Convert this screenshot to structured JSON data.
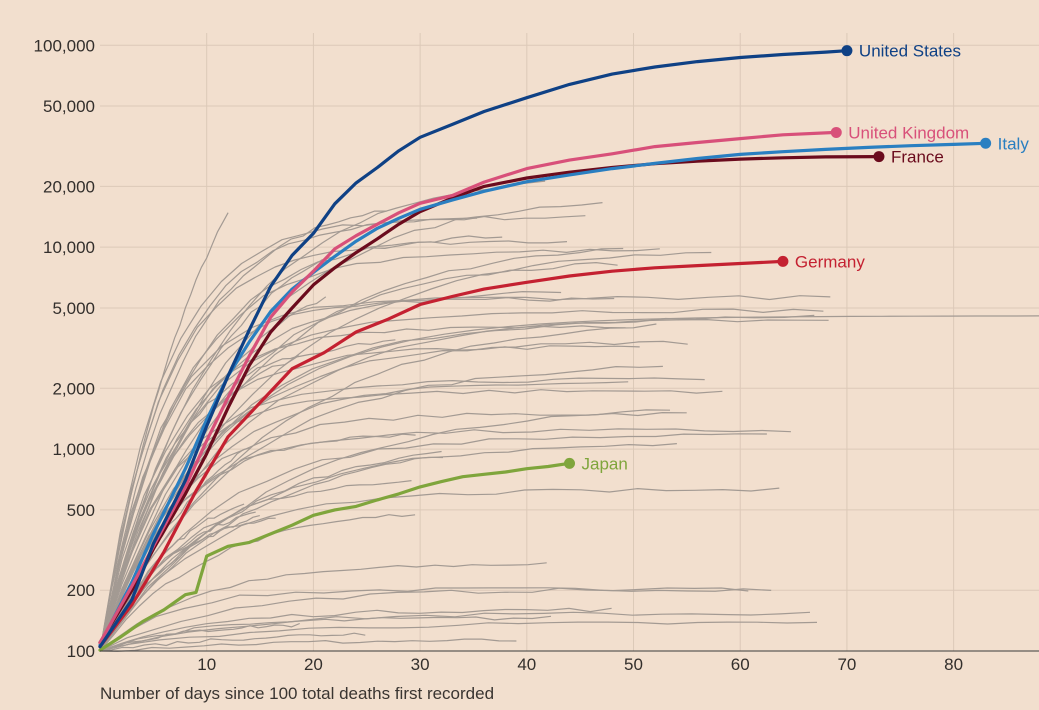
{
  "chart_data": {
    "type": "line",
    "title": "",
    "xlabel": "Number of days since 100 total deaths first recorded",
    "ylabel": "",
    "yscale": "log",
    "xlim": [
      0,
      88
    ],
    "ylim": [
      100,
      115000
    ],
    "x_ticks": [
      10,
      20,
      30,
      40,
      50,
      60,
      70,
      80
    ],
    "y_ticks": [
      {
        "value": 100,
        "label": "100"
      },
      {
        "value": 200,
        "label": "200"
      },
      {
        "value": 500,
        "label": "500"
      },
      {
        "value": 1000,
        "label": "1,000"
      },
      {
        "value": 2000,
        "label": "2,000"
      },
      {
        "value": 5000,
        "label": "5,000"
      },
      {
        "value": 10000,
        "label": "10,000"
      },
      {
        "value": 20000,
        "label": "20,000"
      },
      {
        "value": 50000,
        "label": "50,000"
      },
      {
        "value": 100000,
        "label": "100,000"
      }
    ],
    "grid": true,
    "legend": "direct labels at line ends",
    "series": [
      {
        "name": "United States",
        "color": "#0f4185",
        "x": [
          0,
          3,
          5,
          8,
          10,
          12,
          14,
          16,
          18,
          20,
          22,
          24,
          26,
          28,
          30,
          33,
          36,
          40,
          44,
          48,
          52,
          56,
          60,
          64,
          68,
          70
        ],
        "y": [
          105,
          180,
          340,
          700,
          1300,
          2300,
          3900,
          6400,
          9100,
          11700,
          16400,
          20800,
          24800,
          30000,
          35000,
          40500,
          47000,
          55000,
          64000,
          72000,
          78000,
          83000,
          87000,
          90000,
          92500,
          94000
        ]
      },
      {
        "name": "United Kingdom",
        "color": "#d8507a",
        "x": [
          0,
          3,
          5,
          8,
          10,
          12,
          14,
          16,
          18,
          20,
          22,
          24,
          26,
          28,
          30,
          33,
          36,
          40,
          44,
          48,
          52,
          56,
          60,
          64,
          69
        ],
        "y": [
          110,
          210,
          330,
          650,
          1100,
          1800,
          2900,
          4500,
          6000,
          7600,
          9800,
          11400,
          13000,
          14800,
          16500,
          18000,
          21000,
          24500,
          27000,
          29000,
          31500,
          33000,
          34500,
          36000,
          37000
        ]
      },
      {
        "name": "Italy",
        "color": "#2a7fc1",
        "x": [
          0,
          3,
          5,
          8,
          10,
          12,
          14,
          16,
          18,
          20,
          22,
          24,
          26,
          28,
          30,
          33,
          36,
          40,
          44,
          48,
          52,
          56,
          60,
          64,
          68,
          72,
          76,
          80,
          83
        ],
        "y": [
          107,
          220,
          380,
          800,
          1400,
          2300,
          3400,
          4800,
          6200,
          7500,
          9000,
          10700,
          12400,
          13900,
          15400,
          17100,
          18900,
          21100,
          22800,
          24500,
          26000,
          27500,
          28800,
          29700,
          30500,
          31200,
          31800,
          32300,
          32700
        ]
      },
      {
        "name": "France",
        "color": "#6b0b1d",
        "x": [
          0,
          3,
          5,
          8,
          10,
          12,
          14,
          16,
          18,
          20,
          22,
          24,
          26,
          28,
          30,
          33,
          36,
          40,
          44,
          48,
          52,
          56,
          60,
          64,
          68,
          73
        ],
        "y": [
          110,
          200,
          320,
          600,
          950,
          1600,
          2600,
          3800,
          5000,
          6500,
          7900,
          9400,
          11000,
          13000,
          15000,
          17500,
          20000,
          22000,
          23500,
          24800,
          25900,
          26700,
          27300,
          27700,
          28000,
          28100
        ]
      },
      {
        "name": "Germany",
        "color": "#c42131",
        "x": [
          0,
          3,
          6,
          9,
          12,
          15,
          18,
          21,
          24,
          27,
          30,
          33,
          36,
          40,
          44,
          48,
          52,
          56,
          60,
          64
        ],
        "y": [
          105,
          170,
          310,
          620,
          1150,
          1700,
          2500,
          3000,
          3800,
          4400,
          5200,
          5700,
          6200,
          6700,
          7200,
          7600,
          7900,
          8100,
          8300,
          8500
        ]
      },
      {
        "name": "Japan",
        "color": "#7fa53c",
        "x": [
          0,
          2,
          4,
          6,
          8,
          9,
          10,
          12,
          14,
          16,
          18,
          20,
          22,
          24,
          26,
          28,
          30,
          32,
          34,
          36,
          38,
          40,
          42,
          44
        ],
        "y": [
          101,
          118,
          140,
          160,
          190,
          195,
          295,
          330,
          345,
          380,
          420,
          470,
          500,
          520,
          560,
          600,
          650,
          690,
          730,
          750,
          770,
          800,
          820,
          850
        ]
      }
    ]
  }
}
